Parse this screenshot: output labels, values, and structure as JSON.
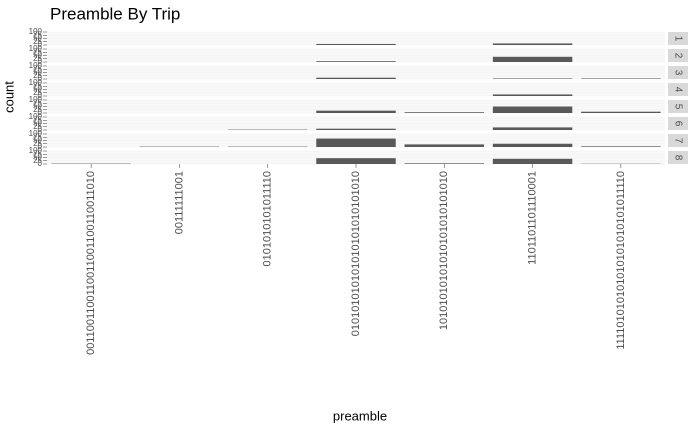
{
  "chart_data": {
    "type": "bar",
    "title": "Preamble By Trip",
    "x_label": "preamble",
    "y_label": "count",
    "categories": [
      "0011001100110011001100110011010",
      "00111111001",
      "0101010101011110",
      "010101010101010101010101010",
      "10101010101010101010101010",
      "1101101101110001",
      "111101010101010101010101011110"
    ],
    "ylim": [
      0,
      100
    ],
    "yticks": [
      0,
      25,
      50,
      75,
      100
    ],
    "grid": true,
    "series": [
      {
        "name": "1",
        "color": "#595959",
        "values": [
          0,
          0,
          0,
          8,
          0,
          12,
          0
        ]
      },
      {
        "name": "2",
        "color": "#595959",
        "values": [
          0,
          0,
          0,
          6,
          0,
          40,
          0
        ]
      },
      {
        "name": "3",
        "color": "#595959",
        "values": [
          0,
          0,
          0,
          10,
          0,
          4,
          4
        ]
      },
      {
        "name": "4",
        "color": "#595959",
        "values": [
          0,
          0,
          0,
          0,
          0,
          12,
          0
        ]
      },
      {
        "name": "5",
        "color": "#595959",
        "values": [
          0,
          0,
          0,
          18,
          6,
          50,
          10
        ]
      },
      {
        "name": "6",
        "color": "#595959",
        "values": [
          0,
          0,
          3,
          10,
          0,
          20,
          0
        ]
      },
      {
        "name": "7",
        "color": "#595959",
        "values": [
          0,
          3,
          3,
          65,
          20,
          25,
          5
        ]
      },
      {
        "name": "8",
        "color": "#595959",
        "values": [
          3,
          0,
          0,
          45,
          5,
          40,
          2
        ]
      }
    ]
  }
}
